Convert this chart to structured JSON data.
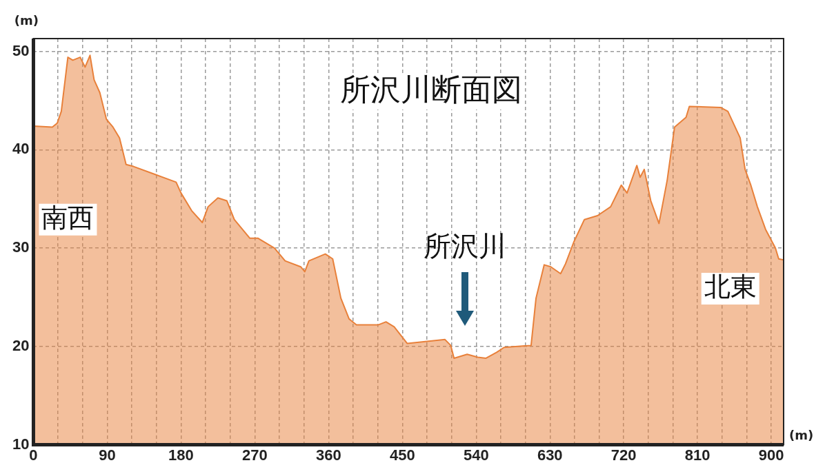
{
  "chart_data": {
    "type": "area",
    "title": "所沢川断面図",
    "xlabel": "(m)",
    "ylabel": "(m)",
    "annotations": [
      "南西",
      "北東",
      "所沢川"
    ],
    "xlim": [
      0,
      915
    ],
    "ylim": [
      10,
      51.3
    ],
    "xticks": [
      0,
      {
        "value": 30,
        "label": null
      },
      {
        "value": 60,
        "label": null
      },
      90,
      {
        "value": 120,
        "label": null
      },
      {
        "value": 150,
        "label": null
      },
      180,
      {
        "value": 210,
        "label": null
      },
      {
        "value": 240,
        "label": null
      },
      270,
      {
        "value": 300,
        "label": null
      },
      {
        "value": 330,
        "label": null
      },
      360,
      {
        "value": 390,
        "label": null
      },
      {
        "value": 420,
        "label": null
      },
      450,
      {
        "value": 480,
        "label": null
      },
      {
        "value": 510,
        "label": null
      },
      540,
      {
        "value": 570,
        "label": null
      },
      {
        "value": 600,
        "label": null
      },
      630,
      {
        "value": 660,
        "label": null
      },
      {
        "value": 690,
        "label": null
      },
      720,
      {
        "value": 750,
        "label": null
      },
      {
        "value": 780,
        "label": null
      },
      810,
      {
        "value": 840,
        "label": null
      },
      {
        "value": 870,
        "label": null
      },
      900
    ],
    "yticks": [
      10,
      20,
      30,
      40,
      50
    ],
    "grid": true,
    "legend": false,
    "marker": "none",
    "line_style": "solid",
    "series": [
      {
        "color": "#e8803a",
        "x": [
          0,
          23,
          29,
          34,
          42,
          48,
          57,
          63,
          69,
          74,
          81,
          89,
          97,
          105,
          113,
          122,
          148,
          174,
          180,
          193,
          206,
          213,
          225,
          236,
          245,
          264,
          274,
          294,
          307,
          326,
          331,
          336,
          356,
          365,
          375,
          385,
          394,
          421,
          430,
          440,
          456,
          502,
          509,
          513,
          529,
          542,
          552,
          565,
          574,
          607,
          613,
          623,
          631,
          643,
          649,
          659,
          672,
          688,
          704,
          717,
          724,
          736,
          740,
          745,
          753,
          763,
          773,
          782,
          796,
          800,
          838,
          847,
          862,
          868,
          875,
          883,
          893,
          905,
          909,
          915
        ],
        "values": [
          42.4,
          42.3,
          42.7,
          43.9,
          49.4,
          49.1,
          49.4,
          48.4,
          49.6,
          47.1,
          45.8,
          43.1,
          42.3,
          41.2,
          38.5,
          38.3,
          37.5,
          36.7,
          35.6,
          33.8,
          32.6,
          34.2,
          35.1,
          34.8,
          32.9,
          31.0,
          31.0,
          30.0,
          28.7,
          28.1,
          27.6,
          28.7,
          29.4,
          28.9,
          24.9,
          22.8,
          22.2,
          22.2,
          22.5,
          22.0,
          20.3,
          20.7,
          20.1,
          18.8,
          19.2,
          18.9,
          18.8,
          19.4,
          19.9,
          20.1,
          24.9,
          28.3,
          28.1,
          27.4,
          28.4,
          30.6,
          32.9,
          33.3,
          34.2,
          36.4,
          35.6,
          38.4,
          37.2,
          38.0,
          34.8,
          32.5,
          36.9,
          42.3,
          43.3,
          44.4,
          44.3,
          43.9,
          41.2,
          38.0,
          36.4,
          34.2,
          31.9,
          30.0,
          28.9,
          28.8
        ]
      }
    ]
  }
}
